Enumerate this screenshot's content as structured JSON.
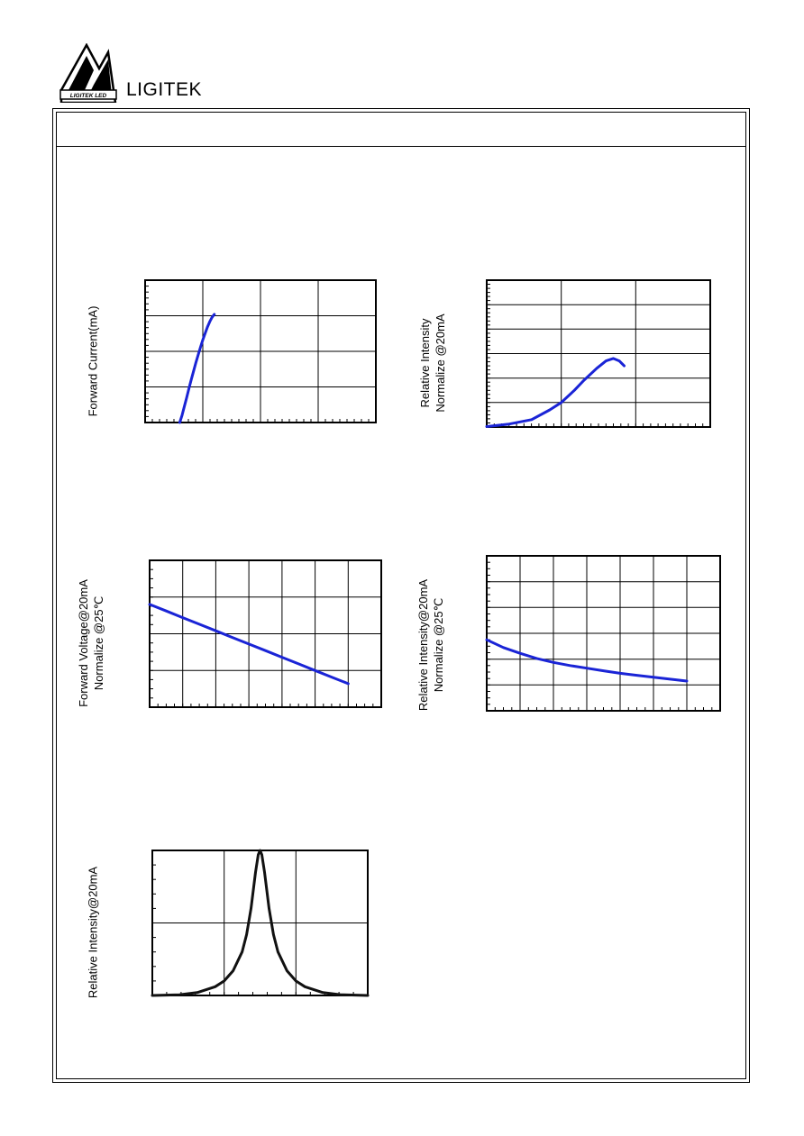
{
  "header": {
    "brand": "LIGITEK",
    "logo_text": "LIGITEK LED"
  },
  "colors": {
    "curve": "#1a24d6",
    "curve_dark": "#111111",
    "grid": "#000000"
  },
  "chart_data": [
    {
      "type": "line",
      "ylabel": "Forward Current(mA)",
      "x": [
        0.3,
        0.32,
        0.34,
        0.36,
        0.38,
        0.4,
        0.42,
        0.44,
        0.46,
        0.48,
        0.5,
        0.52,
        0.54,
        0.56,
        0.58,
        0.6
      ],
      "y": [
        0.1,
        0.16,
        0.28,
        0.5,
        0.9,
        1.6,
        2.8,
        4.8,
        8,
        13,
        21,
        32,
        48,
        68,
        90,
        110
      ],
      "xlim": [
        0,
        2
      ],
      "ylim": [
        0.1,
        1000
      ],
      "yscale": "log",
      "grid": true,
      "color": "blue"
    },
    {
      "type": "line",
      "ylabel": [
        "Relative Intensity",
        "Normalize @20mA"
      ],
      "x": [
        1,
        2,
        4,
        7,
        10,
        15,
        20,
        30,
        40,
        50,
        60,
        70
      ],
      "y": [
        0.02,
        0.12,
        0.3,
        0.7,
        1.0,
        1.5,
        1.9,
        2.4,
        2.7,
        2.8,
        2.7,
        2.5
      ],
      "xlim": [
        1,
        1000
      ],
      "xscale": "log",
      "ylim": [
        0,
        6
      ],
      "grid": true,
      "color": "blue"
    },
    {
      "type": "line",
      "ylabel": [
        "Forward Voltage@20mA",
        "Normalize @25℃"
      ],
      "x": [
        -40,
        -20,
        0,
        20,
        40,
        60,
        80,
        100,
        120,
        140,
        160,
        180,
        200
      ],
      "y": [
        1.3,
        1.255,
        1.21,
        1.165,
        1.12,
        1.075,
        1.03,
        0.985,
        0.94,
        0.895,
        0.85,
        0.805,
        0.76
      ],
      "xlim": [
        -40,
        240
      ],
      "ylim": [
        0.6,
        1.6
      ],
      "grid": true,
      "color": "blue"
    },
    {
      "type": "line",
      "ylabel": [
        "Relative Intensity@20mA",
        "Normalize @25℃"
      ],
      "x": [
        -40,
        -20,
        0,
        20,
        40,
        60,
        80,
        100,
        120,
        140,
        160,
        180,
        200
      ],
      "y": [
        1.1,
        0.98,
        0.89,
        0.81,
        0.75,
        0.7,
        0.66,
        0.62,
        0.58,
        0.55,
        0.52,
        0.49,
        0.46
      ],
      "xlim": [
        -40,
        240
      ],
      "ylim": [
        0,
        2.4
      ],
      "grid": true,
      "color": "blue"
    },
    {
      "type": "line",
      "ylabel": "Relative Intensity@20mA",
      "x": [
        -120,
        -90,
        -70,
        -50,
        -40,
        -30,
        -20,
        -15,
        -10,
        -5,
        -2,
        0,
        2,
        5,
        10,
        15,
        20,
        30,
        40,
        50,
        70,
        90,
        120
      ],
      "y": [
        0,
        0.005,
        0.02,
        0.06,
        0.1,
        0.17,
        0.3,
        0.42,
        0.6,
        0.85,
        0.97,
        1.0,
        0.97,
        0.85,
        0.6,
        0.42,
        0.3,
        0.17,
        0.1,
        0.06,
        0.02,
        0.005,
        0
      ],
      "xlim": [
        -120,
        120
      ],
      "ylim": [
        0,
        1
      ],
      "grid": true,
      "color": "black"
    }
  ]
}
